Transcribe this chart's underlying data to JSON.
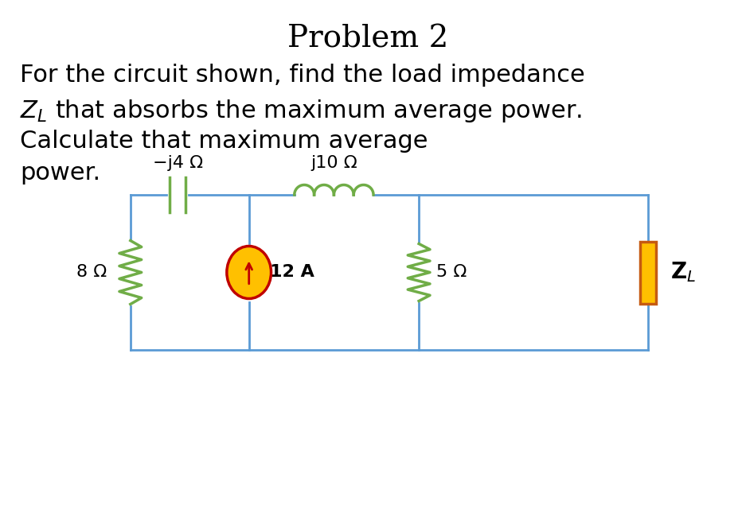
{
  "title": "Problem 2",
  "title_fontsize": 28,
  "text_lines": [
    "For the circuit shown, find the load impedance",
    "$Z_L$ that absorbs the maximum average power.",
    "Calculate that maximum average"
  ],
  "power_word": "power.",
  "background_color": "#ffffff",
  "wire_color": "#5b9bd5",
  "component_color": "#70ad47",
  "ZL_fill": "#ffc000",
  "ZL_edge": "#c55a11",
  "source_fill": "#ffc000",
  "source_edge": "#c00000",
  "arrow_color": "#c00000",
  "label_8ohm": "8 Ω",
  "label_cap": "−j4 Ω",
  "label_ind": "j10 Ω",
  "label_5ohm": "5 Ω",
  "label_source": "12 A",
  "label_ZL": "$\\mathbf{Z}_L$",
  "text_fontsize": 22,
  "label_fontsize": 16,
  "lw_wire": 2.0,
  "lw_comp": 2.5
}
